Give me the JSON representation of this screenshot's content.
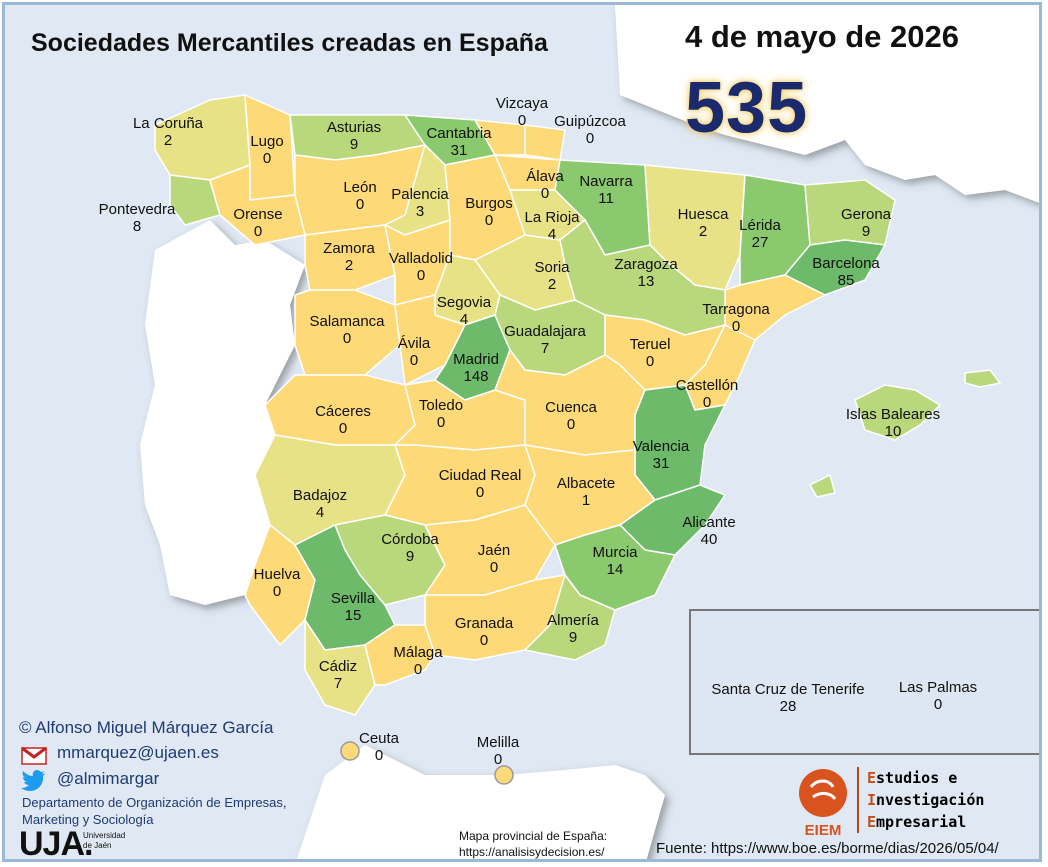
{
  "header": {
    "title": "Sociedades Mercantiles creadas en España",
    "date": "4 de mayo de 2026",
    "total": "535"
  },
  "colors": {
    "low": "#fed978",
    "mid_low": "#e8e287",
    "mid": "#b9d77b",
    "high": "#8bc96e",
    "top": "#6cba6a",
    "sea": "#dfe8f3",
    "land_foreign": "#ffffff",
    "title_blue": "#1a2a6c"
  },
  "provinces": [
    {
      "name": "La Coruña",
      "value": "2"
    },
    {
      "name": "Lugo",
      "value": "0"
    },
    {
      "name": "Asturias",
      "value": "9"
    },
    {
      "name": "Cantabria",
      "value": "31"
    },
    {
      "name": "Vizcaya",
      "value": "0"
    },
    {
      "name": "Guipúzcoa",
      "value": "0"
    },
    {
      "name": "Pontevedra",
      "value": "8"
    },
    {
      "name": "Orense",
      "value": "0"
    },
    {
      "name": "León",
      "value": "0"
    },
    {
      "name": "Palencia",
      "value": "3"
    },
    {
      "name": "Burgos",
      "value": "0"
    },
    {
      "name": "Álava",
      "value": "0"
    },
    {
      "name": "Navarra",
      "value": "11"
    },
    {
      "name": "La Rioja",
      "value": "4"
    },
    {
      "name": "Huesca",
      "value": "2"
    },
    {
      "name": "Lérida",
      "value": "27"
    },
    {
      "name": "Gerona",
      "value": "9"
    },
    {
      "name": "Barcelona",
      "value": "85"
    },
    {
      "name": "Zamora",
      "value": "2"
    },
    {
      "name": "Valladolid",
      "value": "0"
    },
    {
      "name": "Soria",
      "value": "2"
    },
    {
      "name": "Zaragoza",
      "value": "13"
    },
    {
      "name": "Segovia",
      "value": "4"
    },
    {
      "name": "Tarragona",
      "value": "0"
    },
    {
      "name": "Salamanca",
      "value": "0"
    },
    {
      "name": "Ávila",
      "value": "0"
    },
    {
      "name": "Madrid",
      "value": "148"
    },
    {
      "name": "Guadalajara",
      "value": "7"
    },
    {
      "name": "Teruel",
      "value": "0"
    },
    {
      "name": "Castellón",
      "value": "0"
    },
    {
      "name": "Cáceres",
      "value": "0"
    },
    {
      "name": "Toledo",
      "value": "0"
    },
    {
      "name": "Cuenca",
      "value": "0"
    },
    {
      "name": "Islas Baleares",
      "value": "10"
    },
    {
      "name": "Valencia",
      "value": "31"
    },
    {
      "name": "Ciudad Real",
      "value": "0"
    },
    {
      "name": "Badajoz",
      "value": "4"
    },
    {
      "name": "Albacete",
      "value": "1"
    },
    {
      "name": "Alicante",
      "value": "40"
    },
    {
      "name": "Córdoba",
      "value": "9"
    },
    {
      "name": "Jaén",
      "value": "0"
    },
    {
      "name": "Murcia",
      "value": "14"
    },
    {
      "name": "Huelva",
      "value": "0"
    },
    {
      "name": "Sevilla",
      "value": "15"
    },
    {
      "name": "Granada",
      "value": "0"
    },
    {
      "name": "Almería",
      "value": "9"
    },
    {
      "name": "Cádiz",
      "value": "7"
    },
    {
      "name": "Málaga",
      "value": "0"
    },
    {
      "name": "Ceuta",
      "value": "0"
    },
    {
      "name": "Melilla",
      "value": "0"
    },
    {
      "name": "Santa Cruz de Tenerife",
      "value": "28"
    },
    {
      "name": "Las Palmas",
      "value": "0"
    }
  ],
  "credits": {
    "author": "© Alfonso Miguel Márquez García",
    "email": "mmarquez@ujaen.es",
    "twitter": "@almimargar",
    "dept_line1": "Departamento de Organización de Empresas,",
    "dept_line2": "Marketing y Sociología",
    "uja_logo": "UJA.",
    "uja_sub1": "Universidad",
    "uja_sub2": "de Jaén",
    "map_source_line1": "Mapa provincial de España:",
    "map_source_line2": "https://analisisydecision.es/",
    "source": "Fuente: https://www.boe.es/borme/dias/2026/05/04/",
    "eiem_logo": "EIEM",
    "eiem_line1_cap": "E",
    "eiem_line1_rest": "studios e",
    "eiem_line2_cap": "I",
    "eiem_line2_rest": "nvestigación",
    "eiem_line3_cap": "E",
    "eiem_line3_rest": "mpresarial"
  },
  "icons": {
    "mail": "gmail-icon",
    "twitter": "twitter-icon"
  }
}
